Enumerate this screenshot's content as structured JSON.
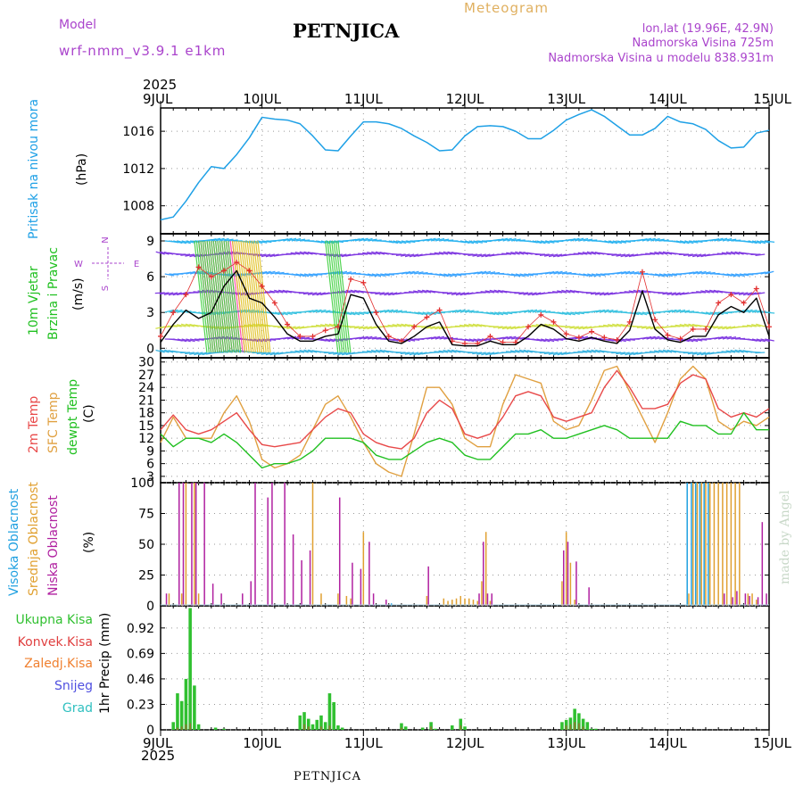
{
  "header": {
    "model_label": "Model",
    "model_name": "wrf-nmm_v3.9.1 e1km",
    "station": "PETNJICA",
    "meteogram": "Meteogram",
    "lonlat": "lon,lat (19.96E, 42.9N)",
    "elevation": "Nadmorska Visina 725m",
    "model_elevation": "Nadmorska Visina u modelu 838.931m"
  },
  "year_top": "2025",
  "year_bottom": "2025",
  "footer": "PETNJICA",
  "watermark": "made by Angel",
  "x_ticks": [
    "9JUL",
    "10JUL",
    "11JUL",
    "12JUL",
    "13JUL",
    "14JUL",
    "15JUL"
  ],
  "panel_labels": {
    "pressure": [
      "Pritisak na nivou mora",
      "(hPa)"
    ],
    "wind": [
      "10m Vjetar",
      "Brzina i Pravac",
      "(m/s)"
    ],
    "temp": [
      "2m Temp",
      "SFC Temp",
      "dewpt Temp",
      "(C)"
    ],
    "cloud": [
      "Visoka Oblacnost",
      "Srednja Oblacnost",
      "Niska Oblacnost",
      "(%)"
    ],
    "precip_axis": "1hr Precip (mm)"
  },
  "compass": {
    "n": "N",
    "w": "W",
    "e": "E",
    "s": "S"
  },
  "precip_legend": [
    "Ukupna Kisa",
    "Konvek.Kisa",
    "Zaledj.Kisa",
    "Snijeg",
    "Grad"
  ],
  "colors": {
    "pressure": "#1ea0e6",
    "wind_speed": "#000000",
    "gust": "#e23030",
    "temp_2m": "#e84848",
    "temp_sfc": "#e0a040",
    "dewpt": "#20c020",
    "cloud_high": "#20a0e0",
    "cloud_mid": "#e0a030",
    "cloud_low": "#b020a0",
    "precip_total": "#30c030",
    "precip_conv": "#e04040",
    "precip_frz": "#f08030",
    "snow": "#5050e0",
    "hail": "#30c0c0"
  },
  "chart_data": [
    {
      "type": "line",
      "title": "Pritisak na nivou mora",
      "ylabel": "(hPa)",
      "ylim": [
        1005,
        1018.5
      ],
      "yticks": [
        1008,
        1012,
        1016
      ],
      "grid": true,
      "x_hours": [
        0,
        3,
        6,
        9,
        12,
        15,
        18,
        21,
        24,
        27,
        30,
        33,
        36,
        39,
        42,
        45,
        48,
        51,
        54,
        57,
        60,
        63,
        66,
        69,
        72,
        75,
        78,
        81,
        84,
        87,
        90,
        93,
        96,
        99,
        102,
        105,
        108,
        111,
        114,
        117,
        120,
        123,
        126,
        129,
        132,
        135,
        138,
        141,
        144
      ],
      "series": [
        {
          "values": [
            1006.5,
            1006.8,
            1008.5,
            1010.5,
            1012.2,
            1012.0,
            1013.5,
            1015.3,
            1017.5,
            1017.3,
            1017.2,
            1016.8,
            1015.5,
            1014.0,
            1013.9,
            1015.5,
            1017.0,
            1017.0,
            1016.8,
            1016.3,
            1015.5,
            1014.8,
            1013.9,
            1014.0,
            1015.5,
            1016.5,
            1016.6,
            1016.5,
            1016.0,
            1015.2,
            1015.2,
            1016.1,
            1017.2,
            1017.8,
            1018.3,
            1017.6,
            1016.6,
            1015.6,
            1015.6,
            1016.3,
            1017.6,
            1017.0,
            1016.8,
            1016.2,
            1015.0,
            1014.2,
            1014.3,
            1015.8,
            1016.1
          ]
        }
      ]
    },
    {
      "type": "line",
      "title": "10m Vjetar",
      "subtitle": "Brzina i Pravac",
      "ylabel": "(m/s)",
      "ylim": [
        -0.8,
        9.6
      ],
      "yticks": [
        0,
        3,
        6,
        9
      ],
      "grid": true,
      "x_hours": [
        0,
        3,
        6,
        9,
        12,
        15,
        18,
        21,
        24,
        27,
        30,
        33,
        36,
        39,
        42,
        45,
        48,
        51,
        54,
        57,
        60,
        63,
        66,
        69,
        72,
        75,
        78,
        81,
        84,
        87,
        90,
        93,
        96,
        99,
        102,
        105,
        108,
        111,
        114,
        117,
        120,
        123,
        126,
        129,
        132,
        135,
        138,
        141,
        144
      ],
      "series": [
        {
          "name": "speed",
          "values": [
            0.5,
            2.0,
            3.2,
            2.5,
            3.0,
            5.2,
            6.5,
            4.2,
            3.8,
            2.6,
            1.2,
            0.6,
            0.6,
            1.0,
            1.2,
            4.5,
            4.2,
            2.0,
            0.6,
            0.4,
            1.0,
            1.8,
            2.2,
            0.3,
            0.2,
            0.2,
            0.6,
            0.3,
            0.3,
            1.0,
            2.0,
            1.6,
            0.8,
            0.6,
            0.9,
            0.6,
            0.4,
            1.5,
            4.8,
            1.6,
            0.7,
            0.5,
            1.0,
            1.0,
            2.8,
            3.5,
            3.0,
            4.2,
            1.0
          ]
        },
        {
          "name": "gust",
          "values": [
            1.0,
            3.0,
            4.5,
            6.8,
            6.0,
            6.5,
            7.2,
            6.5,
            5.2,
            3.8,
            2.0,
            1.0,
            1.0,
            1.5,
            1.8,
            5.8,
            5.5,
            3.0,
            1.0,
            0.6,
            1.8,
            2.6,
            3.2,
            0.6,
            0.4,
            0.4,
            1.0,
            0.5,
            0.5,
            1.8,
            2.8,
            2.2,
            1.2,
            0.9,
            1.4,
            0.9,
            0.7,
            2.2,
            6.4,
            2.4,
            1.1,
            0.8,
            1.6,
            1.6,
            3.8,
            4.5,
            3.8,
            5.0,
            1.8
          ]
        }
      ]
    },
    {
      "type": "line",
      "ylabel": "(C)",
      "ylim": [
        1.5,
        31
      ],
      "yticks": [
        3,
        6,
        9,
        12,
        15,
        18,
        21,
        24,
        27,
        30
      ],
      "grid": true,
      "x_hours": [
        0,
        3,
        6,
        9,
        12,
        15,
        18,
        21,
        24,
        27,
        30,
        33,
        36,
        39,
        42,
        45,
        48,
        51,
        54,
        57,
        60,
        63,
        66,
        69,
        72,
        75,
        78,
        81,
        84,
        87,
        90,
        93,
        96,
        99,
        102,
        105,
        108,
        111,
        114,
        117,
        120,
        123,
        126,
        129,
        132,
        135,
        138,
        141,
        144
      ],
      "series": [
        {
          "name": "2m Temp",
          "values": [
            14,
            17.5,
            14,
            13,
            14,
            16,
            18,
            14,
            10.5,
            10,
            10.5,
            11,
            14,
            17,
            19,
            18,
            13,
            11,
            10,
            9.5,
            12,
            18,
            21,
            19,
            13,
            12,
            13,
            17,
            22,
            23,
            22,
            17,
            16,
            17,
            18,
            24,
            28,
            24,
            19,
            19,
            20,
            25,
            27,
            26,
            19,
            17,
            18,
            17,
            19
          ]
        },
        {
          "name": "SFC Temp",
          "values": [
            11,
            17,
            12,
            12,
            12,
            18,
            22,
            16,
            7,
            5,
            6,
            8,
            14,
            20,
            22,
            17,
            11,
            6,
            4,
            3,
            13,
            24,
            24,
            20,
            12,
            10,
            10,
            20,
            27,
            26,
            25,
            16,
            14,
            15,
            21,
            28,
            29,
            23,
            17,
            11,
            18,
            26,
            29,
            26,
            16,
            14,
            16,
            15,
            17
          ]
        },
        {
          "name": "dewpt Temp",
          "values": [
            13,
            10,
            12,
            12,
            11,
            13,
            11,
            8,
            5,
            6,
            6,
            7,
            9,
            12,
            12,
            12,
            11,
            8,
            7,
            7,
            9,
            11,
            12,
            11,
            8,
            7,
            7,
            10,
            13,
            13,
            14,
            12,
            12,
            13,
            14,
            15,
            14,
            12,
            12,
            12,
            12,
            16,
            15,
            15,
            13,
            13,
            18,
            14,
            14
          ]
        }
      ]
    },
    {
      "type": "bar",
      "ylabel": "(%)",
      "ylim": [
        0,
        100
      ],
      "yticks": [
        0,
        25,
        50,
        75,
        100
      ],
      "grid": true,
      "series": [
        {
          "name": "Visoka Oblacnost",
          "x_hours": [
            55,
            125,
            126,
            127,
            128,
            129,
            130
          ],
          "values": [
            2,
            100,
            100,
            100,
            100,
            100,
            100
          ]
        },
        {
          "name": "Srednja Oblacnost",
          "x_hours": [
            2,
            5,
            6,
            8,
            9,
            36,
            38,
            42,
            44,
            45,
            48,
            63,
            67,
            68,
            69,
            70,
            71,
            72,
            73,
            74,
            75,
            76,
            77,
            78,
            95,
            96,
            97,
            98,
            125,
            126,
            127,
            128,
            129,
            130,
            131,
            132,
            133,
            134,
            135,
            136,
            137,
            139,
            140,
            141
          ],
          "values": [
            10,
            10,
            100,
            100,
            10,
            100,
            10,
            10,
            8,
            6,
            60,
            8,
            6,
            4,
            5,
            6,
            8,
            6,
            6,
            5,
            4,
            20,
            60,
            4,
            20,
            60,
            35,
            5,
            10,
            100,
            100,
            100,
            100,
            100,
            100,
            100,
            100,
            100,
            100,
            100,
            100,
            10,
            10,
            5
          ]
        },
        {
          "name": "Niska Oblacnost",
          "x_hours": [
            1,
            4,
            5,
            7,
            8,
            10,
            12,
            14,
            19,
            21,
            22,
            25,
            26,
            29,
            31,
            33,
            35,
            42,
            45,
            47,
            49,
            50,
            53,
            63,
            75,
            76,
            77,
            78,
            95,
            96,
            98,
            101,
            133,
            135,
            136,
            138,
            139,
            141,
            142,
            143
          ],
          "values": [
            10,
            100,
            100,
            100,
            100,
            100,
            18,
            10,
            10,
            20,
            100,
            88,
            100,
            100,
            58,
            37,
            45,
            88,
            35,
            30,
            52,
            10,
            5,
            32,
            10,
            52,
            10,
            10,
            45,
            52,
            36,
            15,
            10,
            7,
            12,
            10,
            8,
            7,
            68,
            10
          ]
        }
      ]
    },
    {
      "type": "bar",
      "ylabel": "1hr Precip (mm)",
      "ylim": [
        0,
        1.12
      ],
      "yticks": [
        0,
        0.23,
        0.46,
        0.69,
        0.92
      ],
      "grid": true,
      "series": [
        {
          "name": "Ukupna Kisa",
          "x_hours": [
            3,
            4,
            5,
            6,
            7,
            8,
            9,
            13,
            15,
            33,
            34,
            35,
            36,
            37,
            38,
            39,
            40,
            41,
            42,
            43,
            57,
            58,
            62,
            64,
            65,
            69,
            71,
            72,
            95,
            96,
            97,
            98,
            99,
            100,
            101,
            102,
            103
          ],
          "values": [
            0.07,
            0.33,
            0.26,
            0.46,
            1.1,
            0.4,
            0.05,
            0.02,
            0.01,
            0.13,
            0.16,
            0.1,
            0.05,
            0.09,
            0.13,
            0.07,
            0.33,
            0.25,
            0.04,
            0.02,
            0.06,
            0.03,
            0.02,
            0.07,
            0.01,
            0.04,
            0.1,
            0.03,
            0.07,
            0.09,
            0.11,
            0.19,
            0.15,
            0.1,
            0.07,
            0.01,
            0.01
          ]
        },
        {
          "name": "Konvek.Kisa",
          "x_hours": [
            4,
            5,
            6,
            7,
            34,
            35,
            38,
            40,
            57,
            64,
            71,
            96,
            97,
            98,
            99,
            100
          ],
          "values": [
            0.02,
            0.03,
            0.05,
            0.06,
            0.05,
            0.03,
            0.03,
            0.04,
            0.02,
            0.03,
            0.04,
            0.04,
            0.05,
            0.07,
            0.06,
            0.03
          ]
        },
        {
          "name": "Zaledj.Kisa",
          "x_hours": [],
          "values": []
        },
        {
          "name": "Snijeg",
          "x_hours": [],
          "values": []
        },
        {
          "name": "Grad",
          "x_hours": [],
          "values": []
        }
      ]
    }
  ]
}
